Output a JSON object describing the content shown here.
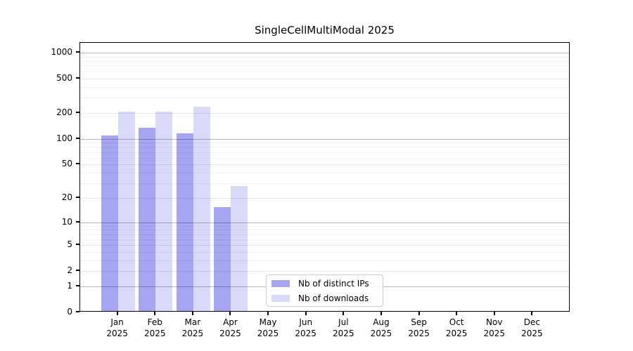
{
  "chart_data": {
    "type": "bar",
    "title": "SingleCellMultiModal 2025",
    "categories": [
      "Jan 2025",
      "Feb 2025",
      "Mar 2025",
      "Apr 2025",
      "May 2025",
      "Jun 2025",
      "Jul 2025",
      "Aug 2025",
      "Sep 2025",
      "Oct 2025",
      "Nov 2025",
      "Dec 2025"
    ],
    "series": [
      {
        "name": "Nb of distinct IPs",
        "color": "#a5a5f1",
        "values": [
          105,
          130,
          112,
          15,
          null,
          null,
          null,
          null,
          null,
          null,
          null,
          null
        ]
      },
      {
        "name": "Nb of downloads",
        "color": "#d9d9f8",
        "values": [
          201,
          201,
          230,
          27,
          null,
          null,
          null,
          null,
          null,
          null,
          null,
          null
        ]
      }
    ],
    "xlabel": "",
    "ylabel": "",
    "yscale": "log1p",
    "ylim": [
      0,
      1300
    ],
    "yticks": [
      0,
      1,
      2,
      5,
      10,
      20,
      50,
      100,
      200,
      500,
      1000
    ],
    "decade_gridlines": [
      1,
      10,
      100,
      1000
    ],
    "minor_gridlines": [
      3,
      4,
      6,
      7,
      8,
      9,
      30,
      40,
      60,
      70,
      80,
      90,
      300,
      400,
      600,
      700,
      800,
      900
    ],
    "grid": true,
    "legend_position": "lower center",
    "spine_color": "#000000",
    "background_color": "#ffffff"
  }
}
